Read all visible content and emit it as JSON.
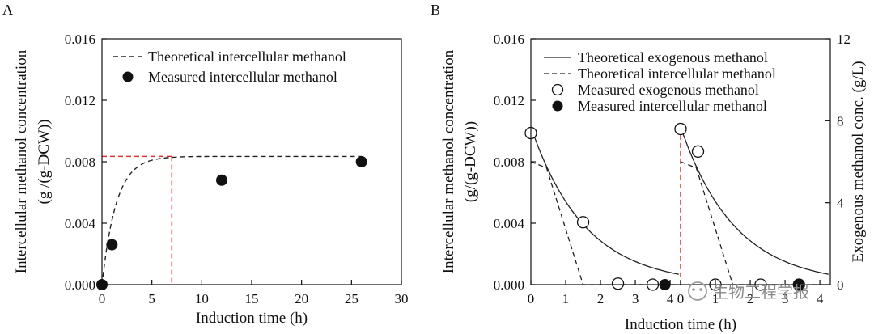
{
  "chart_data": [
    {
      "panel": "A",
      "type": "line",
      "xlabel": "Induction time (h)",
      "ylabel": "Intercellular methanol concentration",
      "ylabel2": "(g /(g-DCW))",
      "xlim": [
        0,
        30
      ],
      "ylim": [
        0,
        0.016
      ],
      "xticks": [
        0,
        5,
        10,
        15,
        20,
        25,
        30
      ],
      "yticks": [
        0.0,
        0.004,
        0.008,
        0.012,
        0.016
      ],
      "ytick_labels": [
        "0.000",
        "0.004",
        "0.008",
        "0.012",
        "0.016"
      ],
      "legend_position": "top-right",
      "series": [
        {
          "name": "Theoretical intercellular methanol",
          "style": "dashed",
          "model": {
            "kind": "saturation",
            "ymax": 0.00835,
            "rate": 0.7
          }
        },
        {
          "name": "Measured intercellular methanol",
          "style": "filled-marker",
          "x": [
            0,
            1,
            12,
            26
          ],
          "y": [
            0.0,
            0.0026,
            0.0068,
            0.008
          ]
        }
      ],
      "reference_lines": {
        "x": 7.0,
        "y": 0.00835,
        "color": "#e03030"
      }
    },
    {
      "panel": "B",
      "type": "line",
      "xlabel": "Induction time (h)",
      "ylabel": "Intercellular methanol concentration",
      "ylabel2": "(g/(g-DCW))",
      "y2label": "Exogenous methanol conc. (g/L)",
      "xticks_segment1": [
        0,
        1,
        2,
        3,
        4
      ],
      "xticks_segment2": [
        0,
        1,
        2,
        3,
        4
      ],
      "xsegment_length": 4.3,
      "ylim": [
        0,
        0.016
      ],
      "yticks": [
        0.0,
        0.004,
        0.008,
        0.012,
        0.016
      ],
      "ytick_labels": [
        "0.000",
        "0.004",
        "0.008",
        "0.012",
        "0.016"
      ],
      "y2lim": [
        0,
        12
      ],
      "y2ticks": [
        0,
        4,
        8,
        12
      ],
      "legend_position": "top",
      "feed_line": {
        "x": 4.3,
        "color": "#e03030"
      },
      "series": [
        {
          "name": "Theoretical exogenous methanol",
          "style": "solid",
          "axis": "right",
          "model": {
            "kind": "decay",
            "y0": 7.7,
            "rate": 0.64
          }
        },
        {
          "name": "Theoretical intercellular methanol",
          "style": "dashed",
          "axis": "left",
          "model": {
            "kind": "piecewise",
            "points": [
              [
                0,
                0.008
              ],
              [
                0.45,
                0.0076
              ],
              [
                1.5,
                0.0
              ]
            ]
          }
        },
        {
          "name": "Measured exogenous methanol",
          "style": "open-marker",
          "axis": "right",
          "x": [
            0,
            1.5,
            2.5,
            3.5,
            4.3,
            4.8,
            5.3,
            6.6,
            7.7
          ],
          "y": [
            7.4,
            3.05,
            0.05,
            0.0,
            7.6,
            6.5,
            0.0,
            0.0,
            0.0
          ]
        },
        {
          "name": "Measured intercellular methanol",
          "style": "filled-marker",
          "axis": "left",
          "x": [
            3.85,
            7.7
          ],
          "y": [
            0.0,
            0.0
          ]
        }
      ]
    }
  ],
  "panels": {
    "a_letter": "A",
    "b_letter": "B"
  },
  "watermark": {
    "text": "生物工程学报"
  }
}
